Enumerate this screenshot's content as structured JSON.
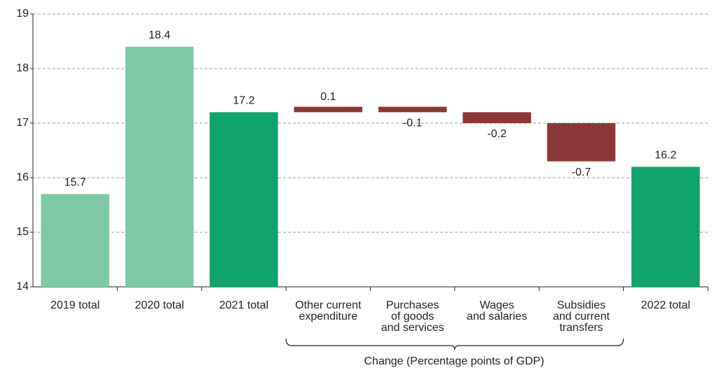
{
  "chart_data": {
    "type": "waterfall",
    "categories": [
      [
        "2019 total"
      ],
      [
        "2020 total"
      ],
      [
        "2021 total"
      ],
      [
        "Other current",
        "expenditure"
      ],
      [
        "Purchases",
        "of goods",
        "and services"
      ],
      [
        "Wages",
        "and salaries"
      ],
      [
        "Subsidies",
        "and current",
        "transfers"
      ],
      [
        "2022 total"
      ]
    ],
    "values": [
      15.7,
      18.4,
      17.2,
      0.1,
      -0.1,
      -0.2,
      -0.7,
      16.2
    ],
    "measure": [
      "total",
      "total",
      "total",
      "relative",
      "relative",
      "relative",
      "relative",
      "total"
    ],
    "colors": [
      "#7fc9a6",
      "#7fc9a6",
      "#11a36c",
      "#8b3838",
      "#8b3838",
      "#8b3838",
      "#8b3838",
      "#11a36c"
    ],
    "group_label": "Change (Percentage points of GDP)",
    "ylim": [
      14,
      19
    ],
    "yticks": [
      14,
      15,
      16,
      17,
      18,
      19
    ],
    "grid": true
  }
}
